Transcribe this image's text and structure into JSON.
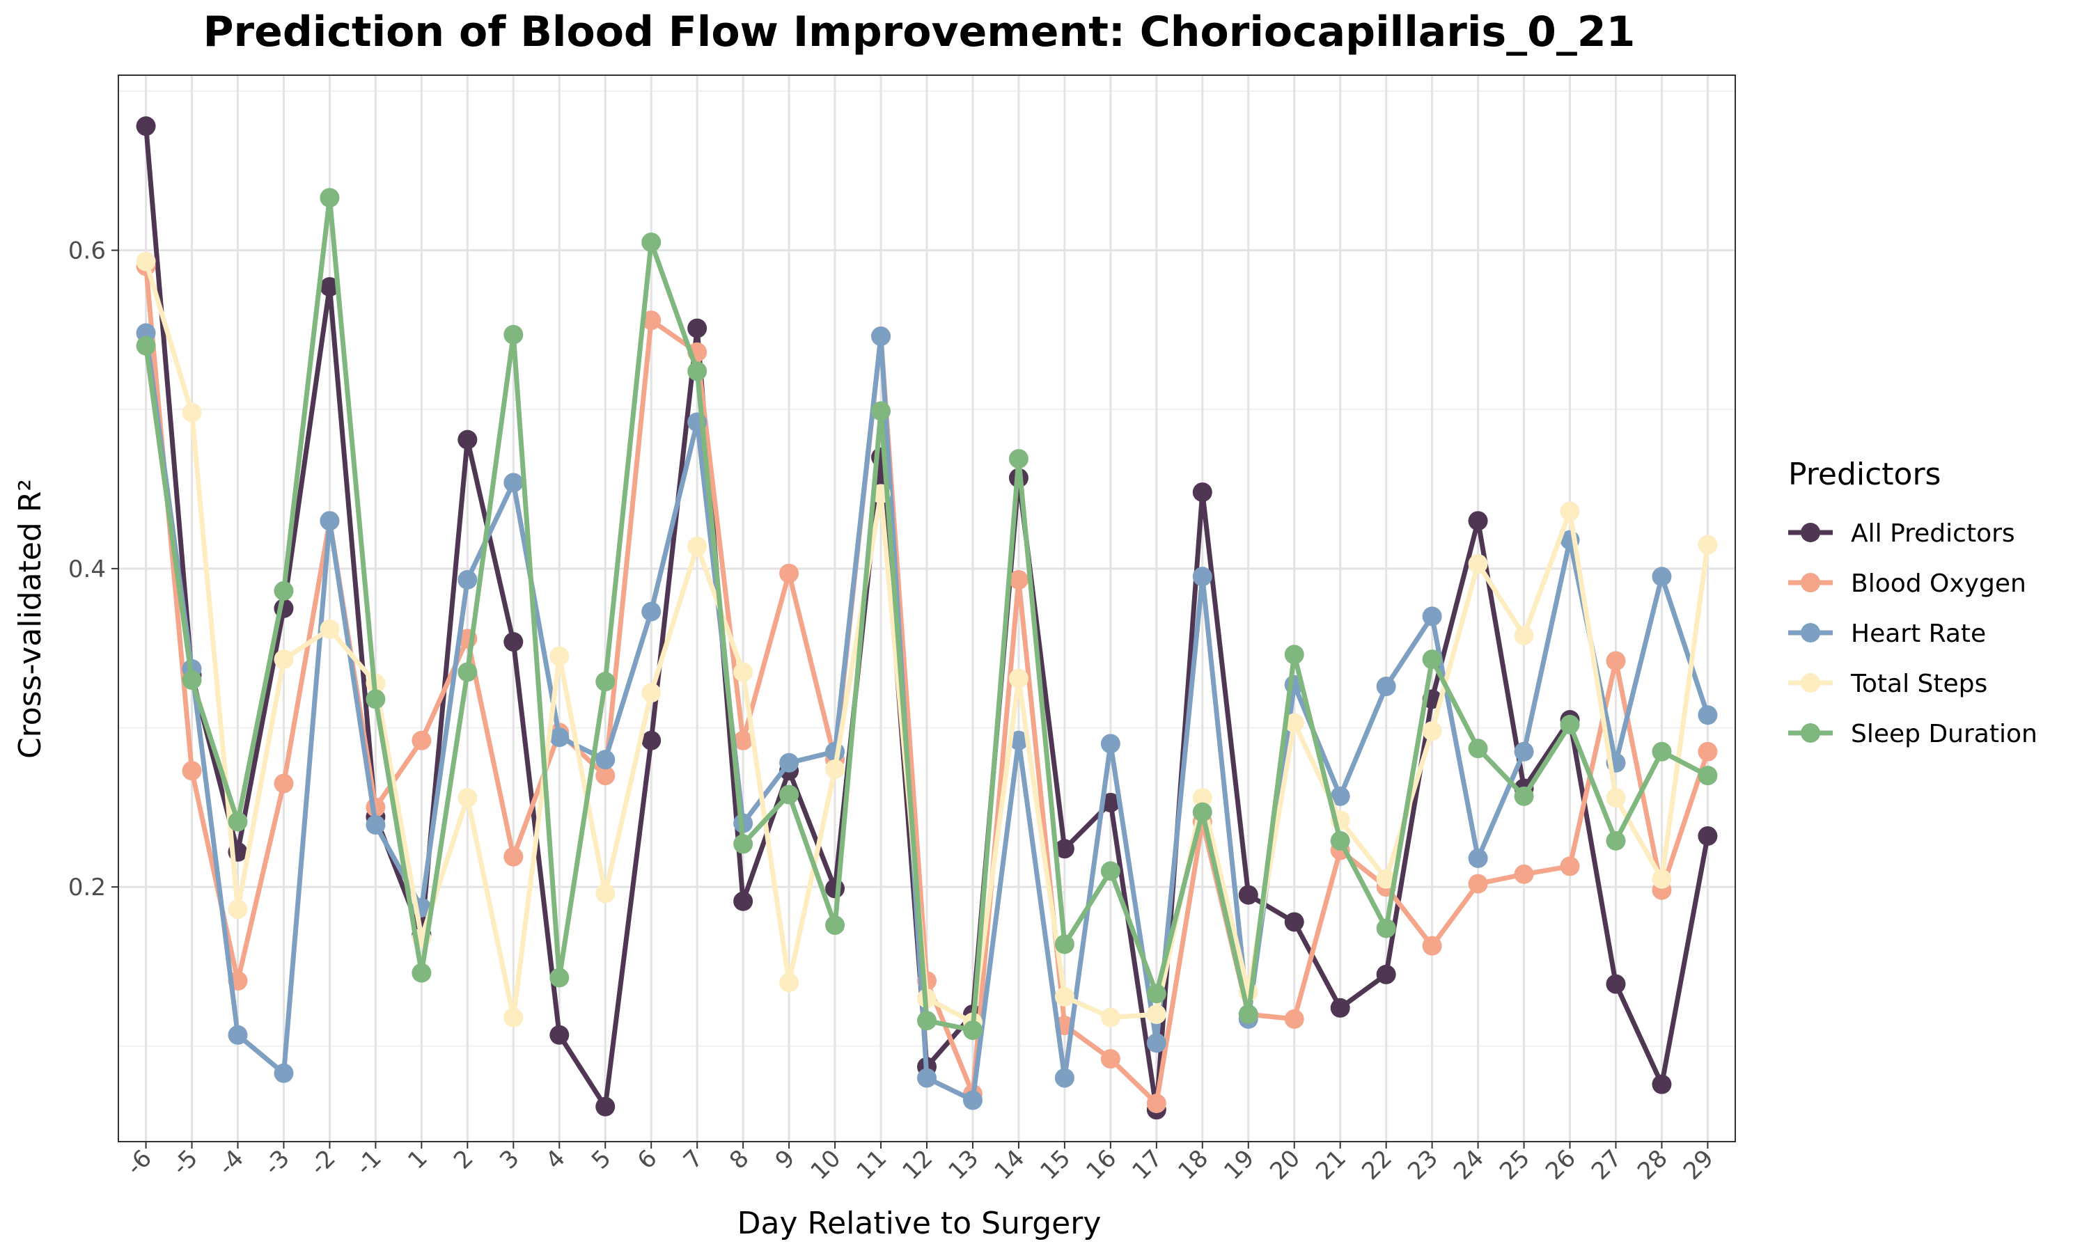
{
  "chart_data": {
    "type": "line",
    "title": "Prediction of Blood Flow Improvement: Choriocapillaris_0_21",
    "xlabel": "Day Relative to Surgery",
    "ylabel": "Cross-validated R²",
    "ylim": [
      0.04,
      0.71
    ],
    "yticks": [
      0.2,
      0.4,
      0.6
    ],
    "ytick_labels": [
      "0.2",
      "0.4",
      "0.6"
    ],
    "grid": true,
    "legend_title": "Predictors",
    "legend_position": "right",
    "categories": [
      "-6",
      "-5",
      "-4",
      "-3",
      "-2",
      "-1",
      "1",
      "2",
      "3",
      "4",
      "5",
      "6",
      "7",
      "8",
      "9",
      "10",
      "11",
      "12",
      "13",
      "14",
      "15",
      "16",
      "17",
      "18",
      "19",
      "20",
      "21",
      "22",
      "23",
      "24",
      "25",
      "26",
      "27",
      "28",
      "29"
    ],
    "series": [
      {
        "name": "All Predictors",
        "color": "#4f3652",
        "values": [
          0.678,
          0.333,
          0.222,
          0.375,
          0.577,
          0.244,
          0.17,
          0.481,
          0.354,
          0.107,
          0.062,
          0.292,
          0.551,
          0.191,
          0.273,
          0.199,
          0.47,
          0.087,
          0.12,
          0.457,
          0.224,
          0.253,
          0.06,
          0.448,
          0.195,
          0.178,
          0.124,
          0.145,
          0.318,
          0.43,
          0.262,
          0.305,
          0.139,
          0.076,
          0.232
        ]
      },
      {
        "name": "Blood Oxygen",
        "color": "#f4a58a",
        "values": [
          0.59,
          0.273,
          0.141,
          0.265,
          0.43,
          0.25,
          0.292,
          0.356,
          0.219,
          0.297,
          0.27,
          0.556,
          0.536,
          0.292,
          0.397,
          0.28,
          0.546,
          0.141,
          0.07,
          0.393,
          0.113,
          0.092,
          0.064,
          0.241,
          0.12,
          0.117,
          0.223,
          0.2,
          0.163,
          0.202,
          0.208,
          0.213,
          0.342,
          0.198,
          0.285
        ]
      },
      {
        "name": "Heart Rate",
        "color": "#7d9fc1",
        "values": [
          0.548,
          0.337,
          0.107,
          0.083,
          0.43,
          0.239,
          0.187,
          0.393,
          0.454,
          0.294,
          0.28,
          0.373,
          0.492,
          0.24,
          0.278,
          0.285,
          0.546,
          0.08,
          0.066,
          0.292,
          0.08,
          0.29,
          0.102,
          0.395,
          0.117,
          0.327,
          0.257,
          0.326,
          0.37,
          0.218,
          0.285,
          0.418,
          0.278,
          0.395,
          0.308
        ]
      },
      {
        "name": "Total Steps",
        "color": "#fdedc0",
        "values": [
          0.593,
          0.498,
          0.186,
          0.343,
          0.362,
          0.328,
          0.168,
          0.256,
          0.118,
          0.345,
          0.196,
          0.322,
          0.414,
          0.335,
          0.14,
          0.274,
          0.447,
          0.13,
          0.115,
          0.331,
          0.131,
          0.118,
          0.12,
          0.256,
          0.134,
          0.303,
          0.242,
          0.205,
          0.298,
          0.403,
          0.358,
          0.436,
          0.256,
          0.205,
          0.415
        ]
      },
      {
        "name": "Sleep Duration",
        "color": "#7fb77e",
        "values": [
          0.54,
          0.33,
          0.241,
          0.386,
          0.633,
          0.318,
          0.146,
          0.335,
          0.547,
          0.143,
          0.329,
          0.605,
          0.524,
          0.227,
          0.258,
          0.176,
          0.499,
          0.116,
          0.11,
          0.469,
          0.164,
          0.21,
          0.133,
          0.247,
          0.12,
          0.346,
          0.229,
          0.174,
          0.343,
          0.287,
          0.257,
          0.302,
          0.229,
          0.285,
          0.27
        ]
      }
    ]
  }
}
